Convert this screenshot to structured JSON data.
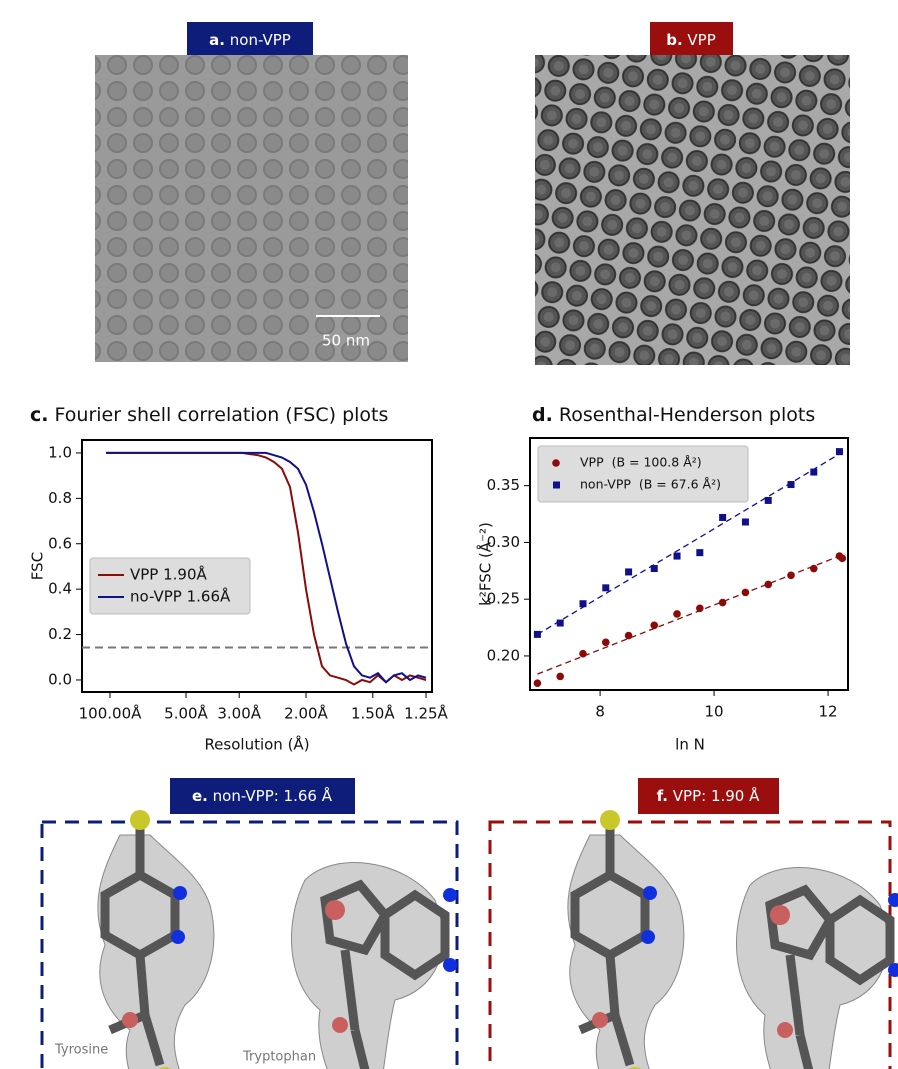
{
  "panels": {
    "a": {
      "letter": "a.",
      "title": "non-VPP",
      "scale_bar": "50 nm"
    },
    "b": {
      "letter": "b.",
      "title": "VPP"
    },
    "e": {
      "letter": "e.",
      "title": "non-VPP: 1.66 Å",
      "labels": [
        "Tyrosine",
        "Tryptophan"
      ]
    },
    "f": {
      "letter": "f.",
      "title": "VPP: 1.90 Å"
    }
  },
  "chart_data": [
    {
      "type": "line",
      "letter": "c.",
      "title": "Fourier shell correlation (FSC) plots",
      "x_label": "Resolution (Å)",
      "y_label": "FSC",
      "x": [
        0,
        0.02,
        0.04,
        0.06,
        0.08,
        0.1,
        0.12,
        0.14,
        0.16,
        0.18,
        0.2,
        0.22,
        0.24,
        0.26,
        0.28,
        0.3,
        0.32,
        0.34,
        0.36,
        0.38,
        0.4,
        0.42,
        0.44,
        0.46,
        0.48,
        0.5,
        0.52,
        0.54,
        0.56,
        0.58,
        0.6,
        0.62,
        0.64,
        0.66,
        0.68,
        0.7,
        0.72,
        0.74,
        0.76,
        0.78,
        0.8
      ],
      "series": [
        {
          "name": "VPP 1.90Å",
          "color": "#8b0a0a",
          "values": [
            1,
            1,
            1,
            1,
            1,
            1,
            1,
            1,
            1,
            1,
            1,
            1,
            1,
            1,
            1,
            1,
            1,
            1,
            0.995,
            0.99,
            0.98,
            0.96,
            0.93,
            0.85,
            0.65,
            0.4,
            0.2,
            0.06,
            0.02,
            0.01,
            0,
            -0.02,
            0,
            -0.01,
            0.02,
            -0.01,
            0.02,
            0,
            0.02,
            0.01,
            0
          ]
        },
        {
          "name": "no-VPP 1.66Å",
          "color": "#10108b",
          "values": [
            1,
            1,
            1,
            1,
            1,
            1,
            1,
            1,
            1,
            1,
            1,
            1,
            1,
            1,
            1,
            1,
            1,
            1,
            1,
            1,
            1,
            0.99,
            0.98,
            0.96,
            0.93,
            0.86,
            0.74,
            0.6,
            0.45,
            0.3,
            0.16,
            0.06,
            0.02,
            0.01,
            0.03,
            -0.01,
            0.02,
            0.03,
            0,
            0.02,
            0.01
          ]
        }
      ],
      "xlim": [
        -0.06,
        0.815
      ],
      "ylim": [
        -0.053,
        1.057
      ],
      "xticks": [
        {
          "value": 0.01,
          "label": "100.00Å"
        },
        {
          "value": 0.2,
          "label": "5.00Å"
        },
        {
          "value": 0.333,
          "label": "3.00Å"
        },
        {
          "value": 0.5,
          "label": "2.00Å"
        },
        {
          "value": 0.667,
          "label": "1.50Å"
        },
        {
          "value": 0.8,
          "label": "1.25Å"
        }
      ],
      "yticks": [
        {
          "value": 0,
          "label": "0.0"
        },
        {
          "value": 0.2,
          "label": "0.2"
        },
        {
          "value": 0.4,
          "label": "0.4"
        },
        {
          "value": 0.6,
          "label": "0.6"
        },
        {
          "value": 0.8,
          "label": "0.8"
        },
        {
          "value": 1,
          "label": "1.0"
        }
      ],
      "threshold": 0.143,
      "legend": "center left"
    },
    {
      "type": "scatter",
      "letter": "d.",
      "title": "Rosenthal-Henderson plots",
      "x_label": "ln N",
      "y_label": "k²FSC (Å⁻²)",
      "series": [
        {
          "name": "VPP  (B = 100.8 Å²)",
          "color": "#8b0a0a",
          "marker": "circle",
          "x": [
            6.9,
            7.3,
            7.7,
            8.1,
            8.5,
            8.95,
            9.35,
            9.75,
            10.15,
            10.55,
            10.95,
            11.35,
            11.75,
            12.2,
            12.25
          ],
          "values": [
            0.176,
            0.182,
            0.202,
            0.212,
            0.218,
            0.227,
            0.237,
            0.242,
            0.247,
            0.256,
            0.263,
            0.271,
            0.277,
            0.288,
            0.286
          ],
          "fit": {
            "x": [
              6.9,
              12.3
            ],
            "values": [
              0.184,
              0.29
            ]
          }
        },
        {
          "name": "non-VPP  (B = 67.6 Å²)",
          "color": "#10108b",
          "marker": "square",
          "x": [
            6.9,
            7.3,
            7.7,
            8.1,
            8.5,
            8.95,
            9.35,
            9.75,
            10.15,
            10.55,
            10.95,
            11.35,
            11.75,
            12.2
          ],
          "values": [
            0.219,
            0.229,
            0.246,
            0.26,
            0.274,
            0.277,
            0.288,
            0.291,
            0.322,
            0.318,
            0.337,
            0.351,
            0.362,
            0.38
          ],
          "fit": {
            "x": [
              6.9,
              12.3
            ],
            "values": [
              0.219,
              0.381
            ]
          }
        }
      ],
      "xlim": [
        6.77,
        12.35
      ],
      "ylim": [
        0.17,
        0.392
      ],
      "xticks": [
        8,
        10,
        12
      ],
      "yticks": [
        {
          "value": 0.2,
          "label": "0.20"
        },
        {
          "value": 0.25,
          "label": "0.25"
        },
        {
          "value": 0.3,
          "label": "0.30"
        },
        {
          "value": 0.35,
          "label": "0.35"
        }
      ],
      "legend": "upper left"
    }
  ]
}
